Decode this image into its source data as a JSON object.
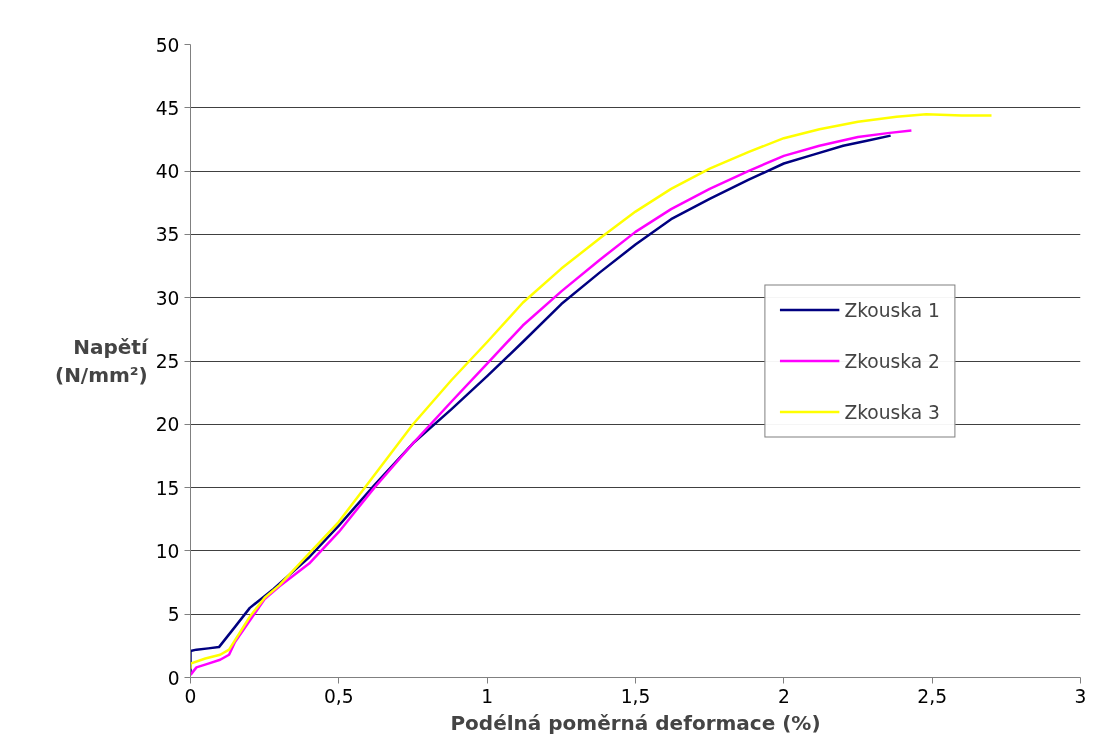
{
  "chart_data": {
    "type": "line",
    "xlabel": "Podélná poměrná deformace (%)",
    "ylabel": "Napětí\n(N/mm²)",
    "xlim": [
      0,
      3
    ],
    "ylim": [
      0,
      50
    ],
    "xticks": [
      0,
      {
        "value": 0.5,
        "label": "0,5"
      },
      1,
      {
        "value": 1.5,
        "label": "1,5"
      },
      2,
      {
        "value": 2.5,
        "label": "2,5"
      },
      3
    ],
    "yticks": [
      0,
      5,
      10,
      15,
      20,
      25,
      30,
      35,
      40,
      45,
      50
    ],
    "grid": "y",
    "legend": "right",
    "marker": "none",
    "line_style": "solid",
    "series": [
      {
        "name": "Zkouska 1",
        "color": "#000080",
        "x": [
          0,
          0,
          0.02,
          0.06,
          0.096,
          0.15,
          0.2,
          0.28,
          0.4,
          0.5,
          0.62,
          0.75,
          0.88,
          1,
          1.12,
          1.25,
          1.38,
          1.5,
          1.62,
          1.75,
          1.88,
          2,
          2.1,
          2.2,
          2.28,
          2.36
        ],
        "values": [
          0.2,
          2.1,
          2.2,
          2.3,
          2.4,
          4.0,
          5.5,
          7.0,
          9.5,
          12.0,
          15.2,
          18.5,
          21.2,
          23.8,
          26.5,
          29.5,
          32.0,
          34.2,
          36.2,
          37.8,
          39.3,
          40.6,
          41.3,
          42.0,
          42.4,
          42.8
        ]
      },
      {
        "name": "Zkouska 2",
        "color": "#ff00ff",
        "x": [
          0,
          0.02,
          0.06,
          0.1,
          0.13,
          0.15,
          0.2,
          0.25,
          0.3,
          0.4,
          0.5,
          0.62,
          0.75,
          0.88,
          1,
          1.12,
          1.25,
          1.38,
          1.5,
          1.62,
          1.75,
          1.88,
          2,
          2.12,
          2.25,
          2.35,
          2.43
        ],
        "values": [
          0.2,
          0.8,
          1.1,
          1.4,
          1.8,
          2.8,
          4.5,
          6.2,
          7.2,
          9.0,
          11.5,
          15.0,
          18.5,
          21.8,
          24.8,
          27.8,
          30.5,
          33.0,
          35.2,
          37.0,
          38.6,
          40.0,
          41.2,
          42.0,
          42.7,
          43.0,
          43.2
        ]
      },
      {
        "name": "Zkouska 3",
        "color": "#ffff00",
        "x": [
          0,
          0,
          0.05,
          0.1,
          0.13,
          0.2,
          0.25,
          0.3,
          0.4,
          0.5,
          0.62,
          0.75,
          0.88,
          1,
          1.12,
          1.25,
          1.38,
          1.5,
          1.62,
          1.75,
          1.88,
          2,
          2.12,
          2.25,
          2.38,
          2.48,
          2.6,
          2.7
        ],
        "values": [
          0.7,
          1.1,
          1.5,
          1.8,
          2.2,
          4.8,
          6.3,
          7.3,
          9.8,
          12.3,
          16.0,
          20.0,
          23.5,
          26.5,
          29.6,
          32.3,
          34.7,
          36.8,
          38.6,
          40.2,
          41.5,
          42.6,
          43.3,
          43.9,
          44.3,
          44.5,
          44.4,
          44.4
        ]
      }
    ]
  }
}
